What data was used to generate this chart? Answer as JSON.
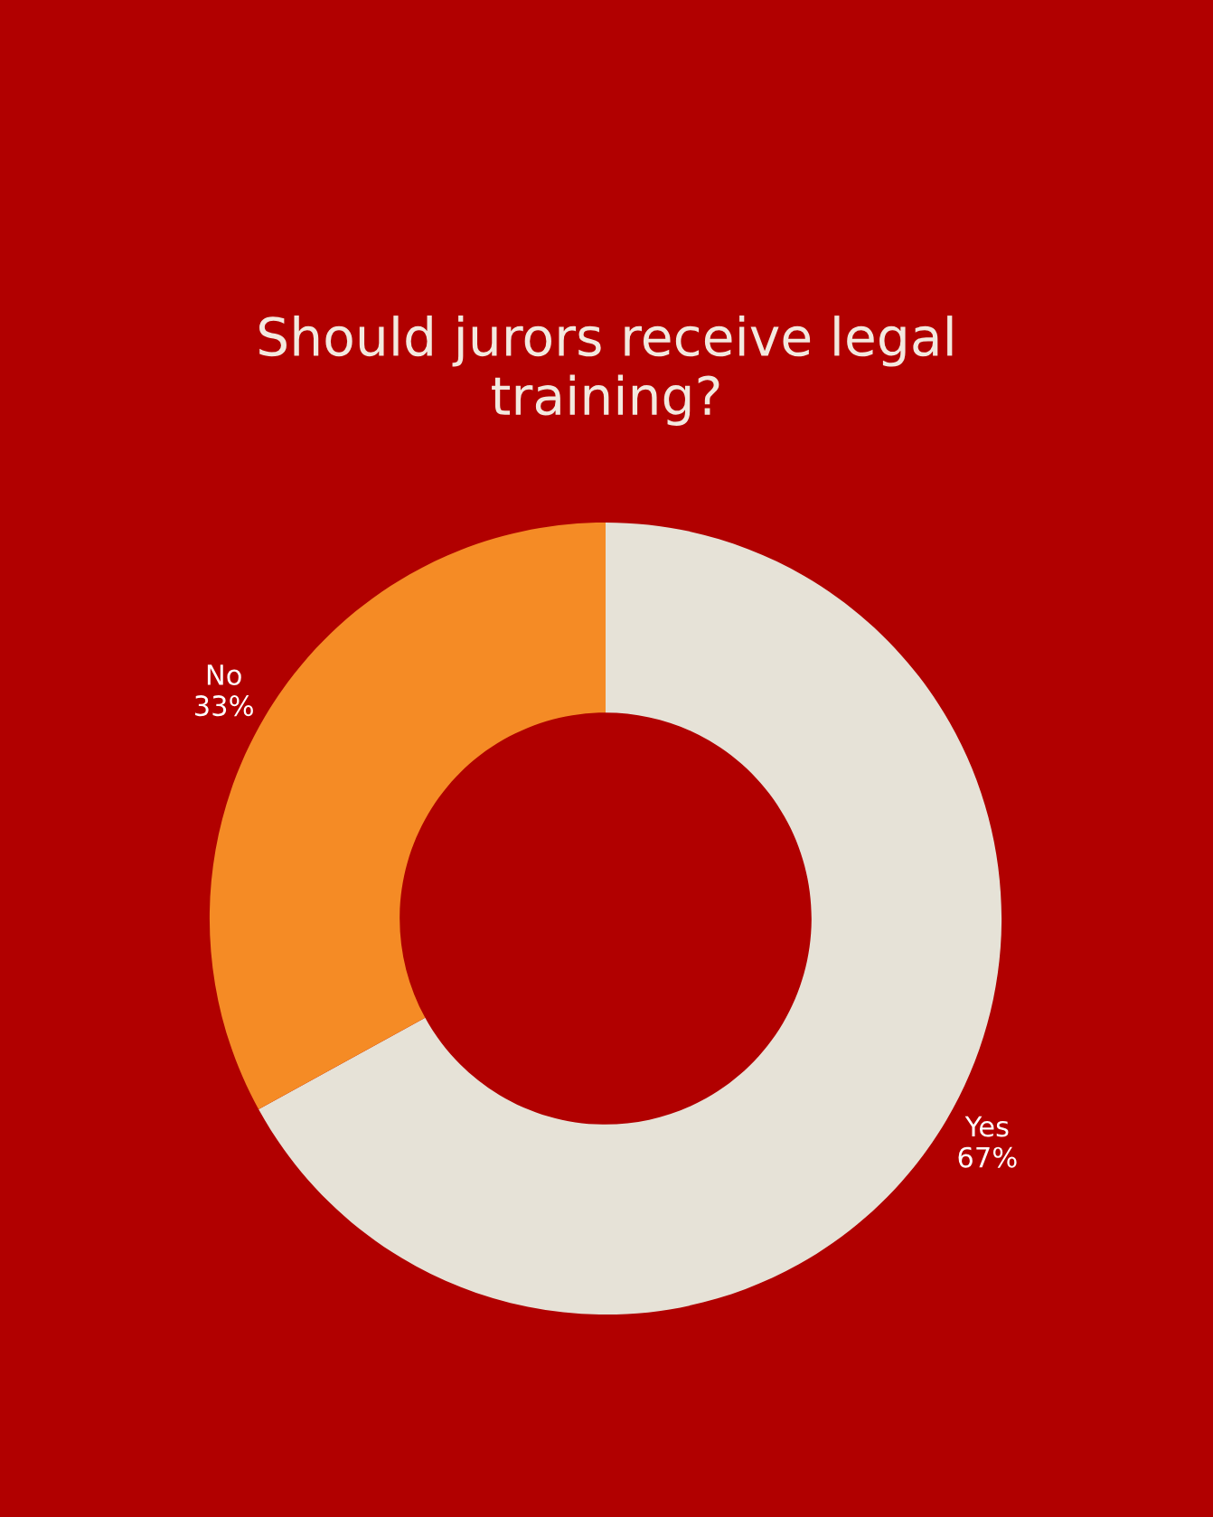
{
  "chart_data": {
    "type": "donut",
    "title": "Should jurors receive legal\ntraining?",
    "categories": [
      "Yes",
      "No"
    ],
    "values": [
      67,
      33
    ],
    "colors": [
      "#e6e2d7",
      "#f58b25"
    ],
    "value_labels": [
      "67%",
      "33%"
    ]
  }
}
